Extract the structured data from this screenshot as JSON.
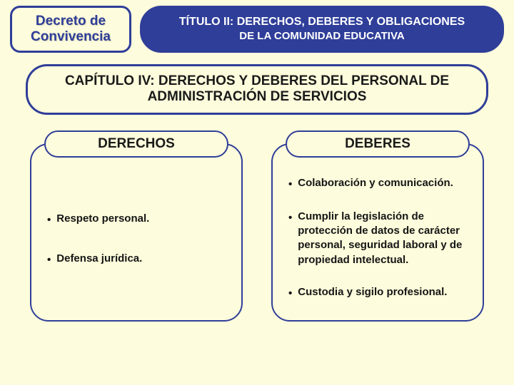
{
  "colors": {
    "background": "#fdfcdc",
    "border_blue": "#2f3e99",
    "title_text": "#ffffff",
    "body_text": "#1a1a1a"
  },
  "decree": {
    "line1": "Decreto de",
    "line2": "Convivencia"
  },
  "title": {
    "line1": "TÍTULO II: DERECHOS, DEBERES Y OBLIGACIONES",
    "line2": "DE LA COMUNIDAD EDUCATIVA"
  },
  "chapter": {
    "line1": "CAPÍTULO IV: DERECHOS Y DEBERES DEL PERSONAL DE",
    "line2": "ADMINISTRACIÓN DE SERVICIOS"
  },
  "columns": {
    "left": {
      "header": "DERECHOS",
      "items": [
        "Respeto personal.",
        "Defensa jurídica."
      ]
    },
    "right": {
      "header": "DEBERES",
      "items": [
        "Colaboración y comunicación.",
        "Cumplir la legislación de protección de datos de carácter personal, seguridad laboral y de propiedad intelectual.",
        "Custodia y sigilo profesional."
      ]
    }
  }
}
